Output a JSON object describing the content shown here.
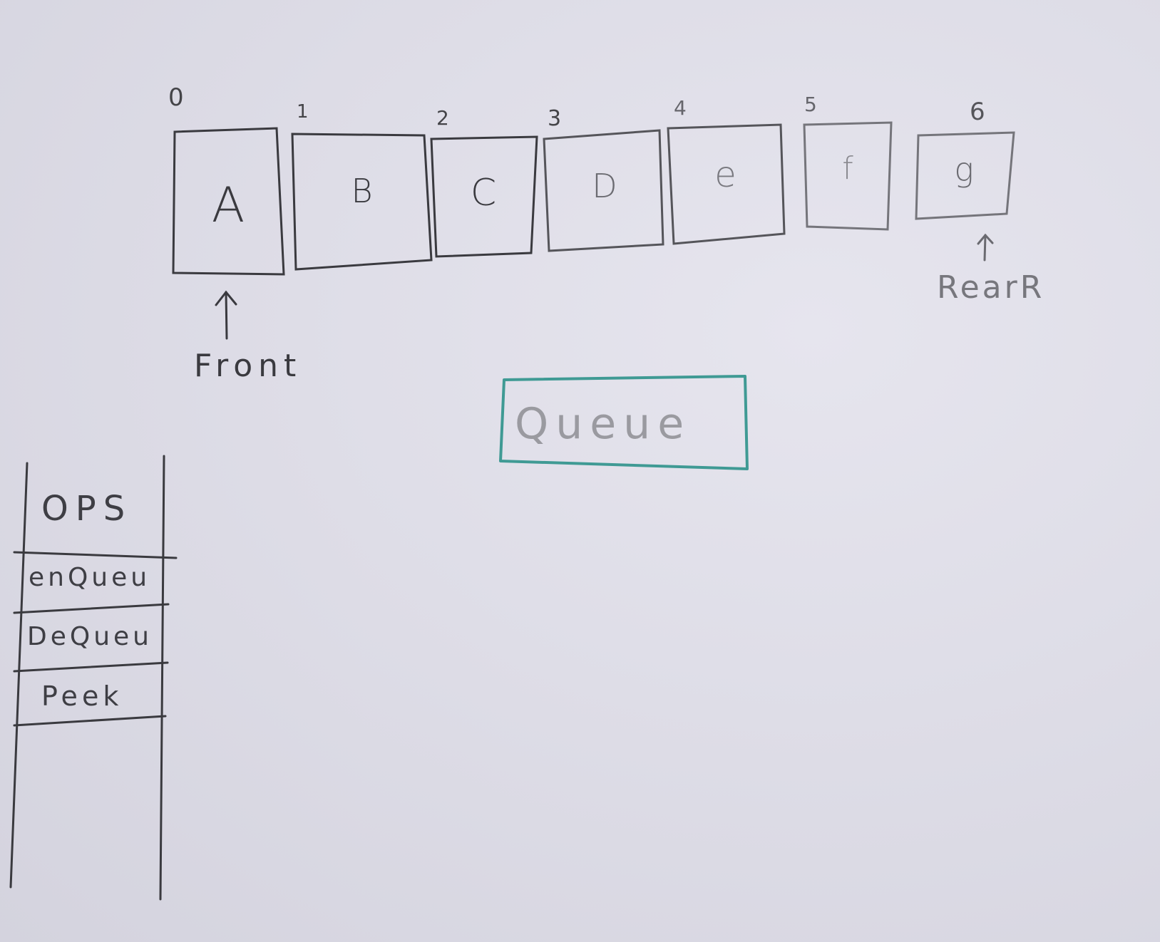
{
  "indices": [
    "0",
    "1",
    "2",
    "3",
    "4",
    "5",
    "6"
  ],
  "cells": [
    "A",
    "B",
    "C",
    "D",
    "e",
    "f",
    "g"
  ],
  "front_label": "Front",
  "rear_label": "RearR",
  "queue_title": "Queue",
  "ops": {
    "header": "OPS",
    "items": [
      "enQueu",
      "DeQueu",
      "Peek"
    ]
  },
  "colors": {
    "pencil": "#3a3a3f",
    "pencil_light": "#8a8a90",
    "teal": "#3f9a94",
    "paper": "#dedde7"
  }
}
